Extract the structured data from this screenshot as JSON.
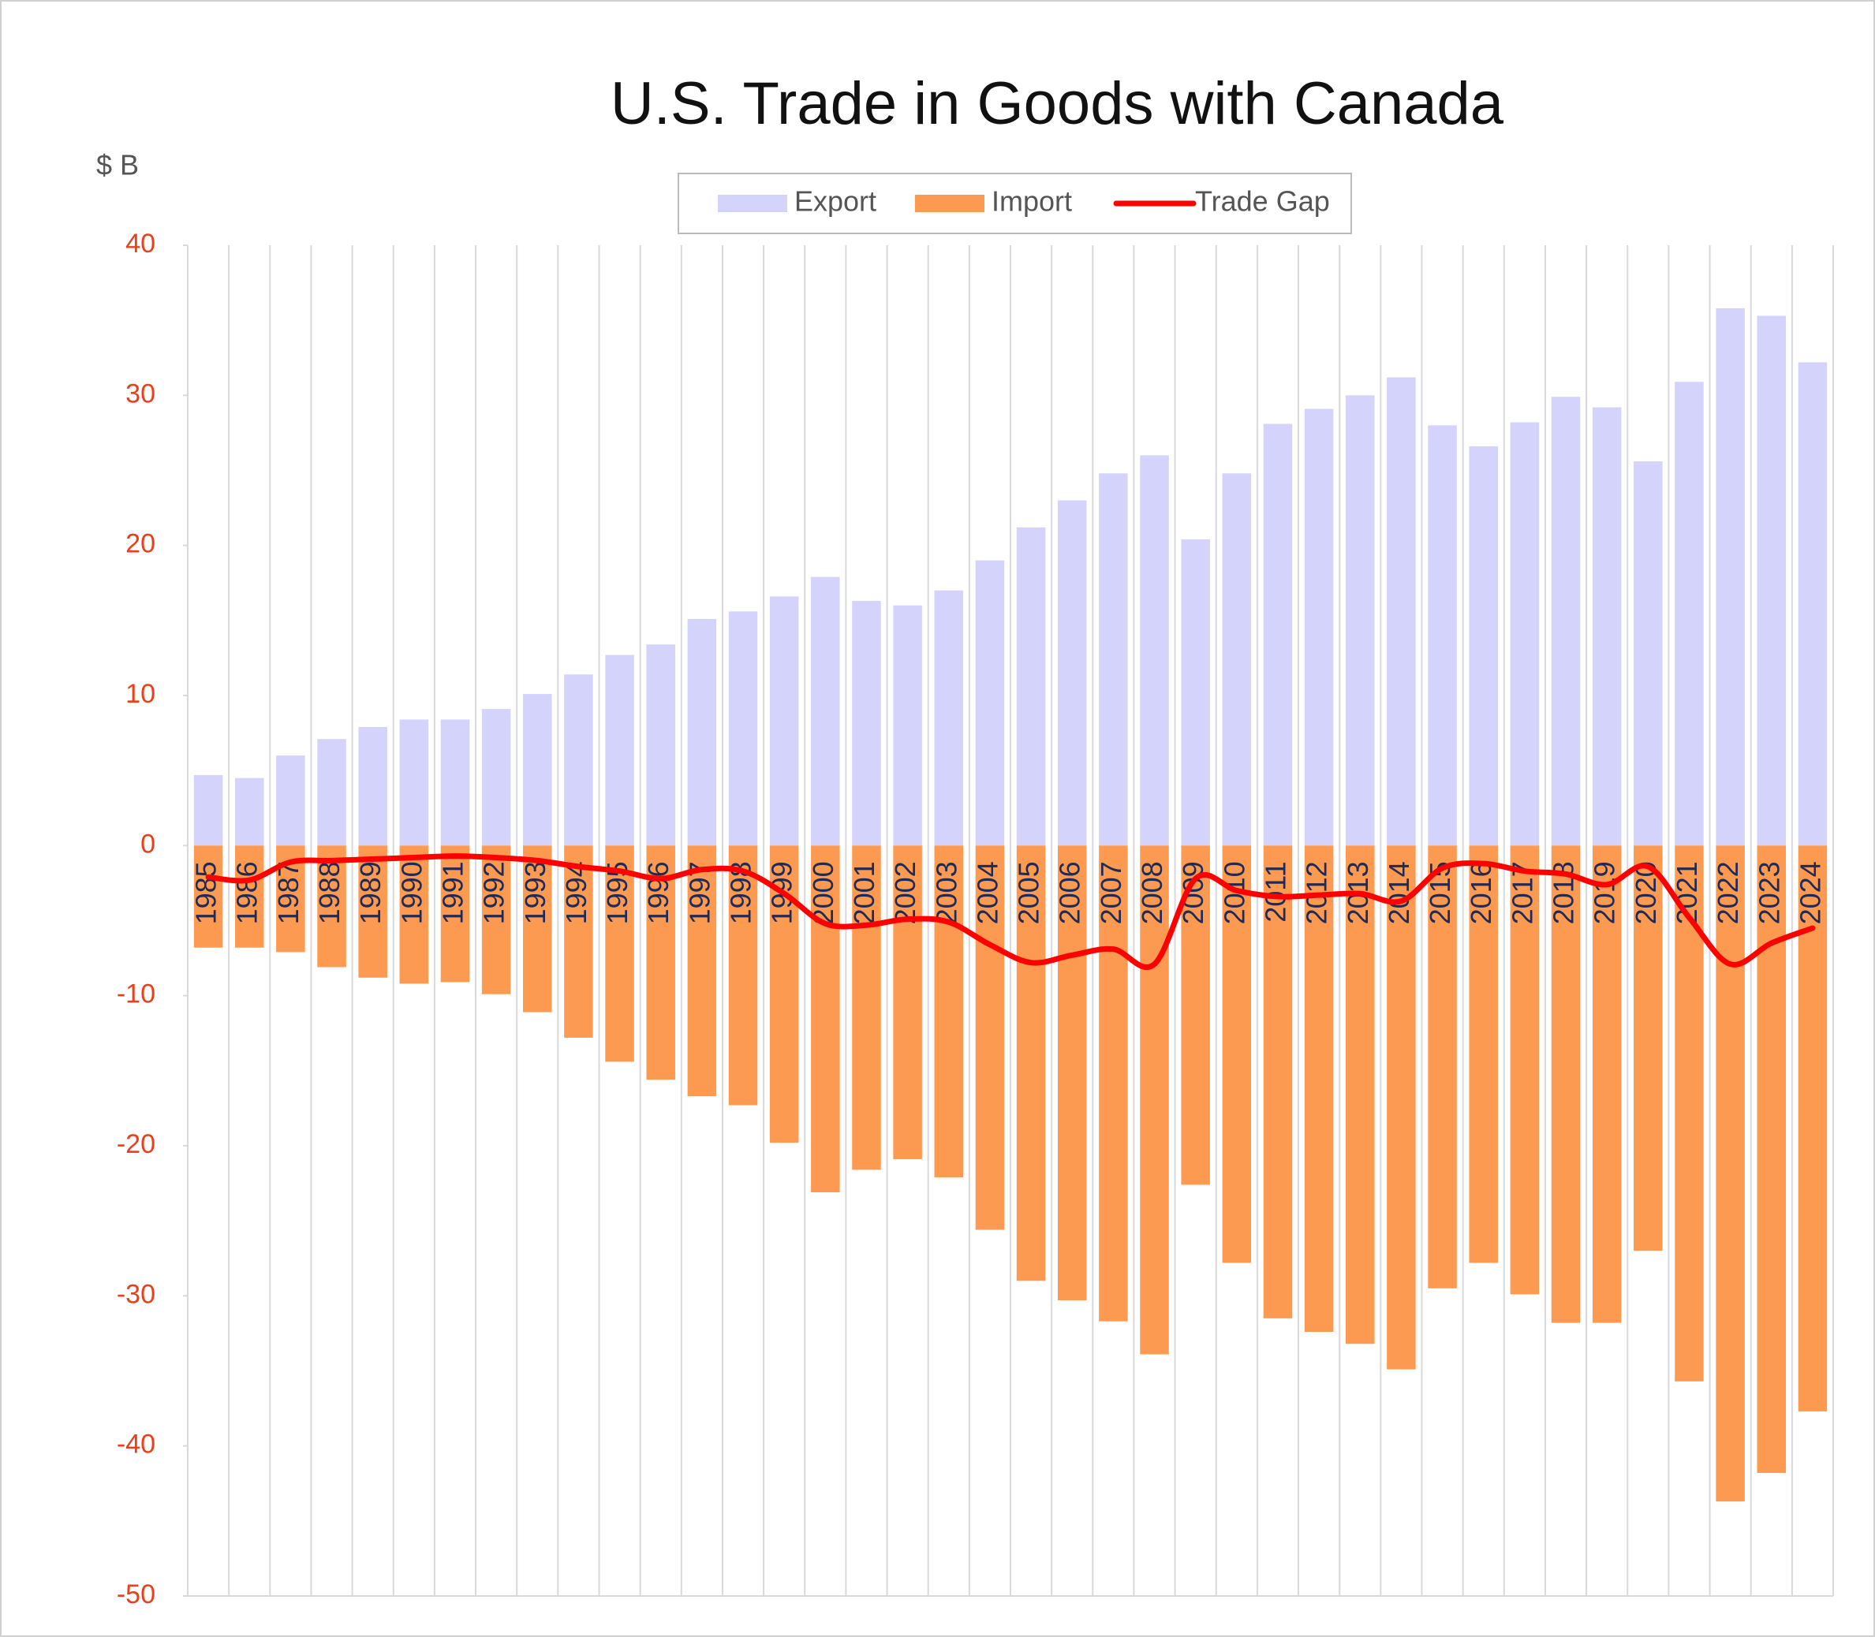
{
  "chart_data": {
    "type": "bar-line",
    "title": "U.S. Trade in Goods with Canada",
    "y_axis_label": "$ B",
    "categories": [
      "1985",
      "1986",
      "1987",
      "1988",
      "1989",
      "1990",
      "1991",
      "1992",
      "1993",
      "1994",
      "1995",
      "1996",
      "1997",
      "1998",
      "1999",
      "2000",
      "2001",
      "2002",
      "2003",
      "2004",
      "2005",
      "2006",
      "2007",
      "2008",
      "2009",
      "2010",
      "2011",
      "2012",
      "2013",
      "2014",
      "2015",
      "2016",
      "2017",
      "2018",
      "2019",
      "2020",
      "2021",
      "2022",
      "2023",
      "2024"
    ],
    "series": [
      {
        "name": "Export",
        "type": "bar",
        "color": "#d4d3fb",
        "values": [
          4.7,
          4.5,
          6.0,
          7.1,
          7.9,
          8.4,
          8.4,
          9.1,
          10.1,
          11.4,
          12.7,
          13.4,
          15.1,
          15.6,
          16.6,
          17.9,
          16.3,
          16.0,
          17.0,
          19.0,
          21.2,
          23.0,
          24.8,
          26.0,
          20.4,
          24.8,
          28.1,
          29.1,
          30.0,
          31.2,
          28.0,
          26.6,
          28.2,
          29.9,
          29.2,
          25.6,
          30.9,
          35.8,
          35.3,
          32.2
        ]
      },
      {
        "name": "Import",
        "type": "bar",
        "color": "#fd9a52",
        "values": [
          -6.8,
          -6.8,
          -7.1,
          -8.1,
          -8.8,
          -9.2,
          -9.1,
          -9.9,
          -11.1,
          -12.8,
          -14.4,
          -15.6,
          -16.7,
          -17.3,
          -19.8,
          -23.1,
          -21.6,
          -20.9,
          -22.1,
          -25.6,
          -29.0,
          -30.3,
          -31.7,
          -33.9,
          -22.6,
          -27.8,
          -31.5,
          -32.4,
          -33.2,
          -34.9,
          -29.5,
          -27.8,
          -29.9,
          -31.8,
          -31.8,
          -27.0,
          -35.7,
          -43.7,
          -41.8,
          -37.7
        ]
      },
      {
        "name": "Trade Gap",
        "type": "line",
        "color": "#ff0000",
        "values": [
          -2.1,
          -2.3,
          -1.1,
          -1.0,
          -0.9,
          -0.8,
          -0.7,
          -0.8,
          -1.0,
          -1.4,
          -1.7,
          -2.2,
          -1.6,
          -1.7,
          -3.2,
          -5.2,
          -5.3,
          -4.9,
          -5.1,
          -6.6,
          -7.8,
          -7.3,
          -6.9,
          -7.9,
          -2.2,
          -3.0,
          -3.4,
          -3.3,
          -3.2,
          -3.7,
          -1.5,
          -1.2,
          -1.7,
          -1.9,
          -2.6,
          -1.4,
          -4.8,
          -7.9,
          -6.5,
          -5.5
        ]
      }
    ],
    "ylim": [
      -50,
      40
    ],
    "yticks": [
      -50,
      -40,
      -30,
      -20,
      -10,
      0,
      10,
      20,
      30,
      40
    ],
    "tick_label_color": "#e8401c",
    "category_label_color": "#1f2a55",
    "x_grid": true,
    "legend_position": "top"
  }
}
